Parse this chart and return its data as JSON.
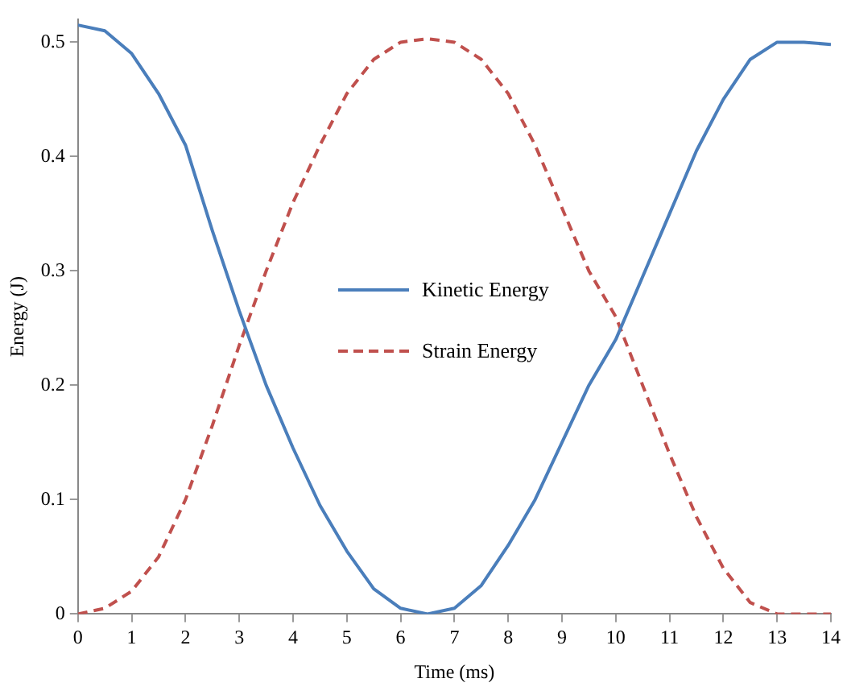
{
  "chart_data": {
    "type": "line",
    "xlabel": "Time (ms)",
    "ylabel": "Energy (J)",
    "x": [
      0,
      0.5,
      1,
      1.5,
      2,
      2.5,
      3,
      3.5,
      4,
      4.5,
      5,
      5.5,
      6,
      6.5,
      7,
      7.5,
      8,
      8.5,
      9,
      9.5,
      10,
      10.5,
      11,
      11.5,
      12,
      12.5,
      13,
      13.5,
      14
    ],
    "series": [
      {
        "name": "Kinetic Energy",
        "color": "#4a7ebb",
        "line_style": "solid",
        "values": [
          0.515,
          0.51,
          0.49,
          0.455,
          0.41,
          0.335,
          0.265,
          0.2,
          0.145,
          0.095,
          0.055,
          0.022,
          0.005,
          0,
          0.005,
          0.025,
          0.06,
          0.1,
          0.15,
          0.2,
          0.24,
          0.295,
          0.35,
          0.405,
          0.45,
          0.485,
          0.5,
          0.5,
          0.498
        ]
      },
      {
        "name": "Strain Energy",
        "color": "#c0504d",
        "line_style": "dashed",
        "values": [
          0,
          0.005,
          0.02,
          0.05,
          0.1,
          0.165,
          0.235,
          0.3,
          0.36,
          0.41,
          0.455,
          0.485,
          0.5,
          0.503,
          0.5,
          0.485,
          0.455,
          0.41,
          0.355,
          0.3,
          0.26,
          0.2,
          0.14,
          0.085,
          0.04,
          0.01,
          0,
          0,
          0
        ]
      }
    ],
    "xlim": [
      0,
      14
    ],
    "xticks": [
      0,
      1,
      2,
      3,
      4,
      5,
      6,
      7,
      8,
      9,
      10,
      11,
      12,
      13,
      14
    ],
    "ylim": [
      0,
      0.52
    ],
    "yticks": [
      0,
      0.1,
      0.2,
      0.3,
      0.4,
      0.5
    ],
    "grid": false,
    "legend": "center",
    "marker": "none"
  }
}
